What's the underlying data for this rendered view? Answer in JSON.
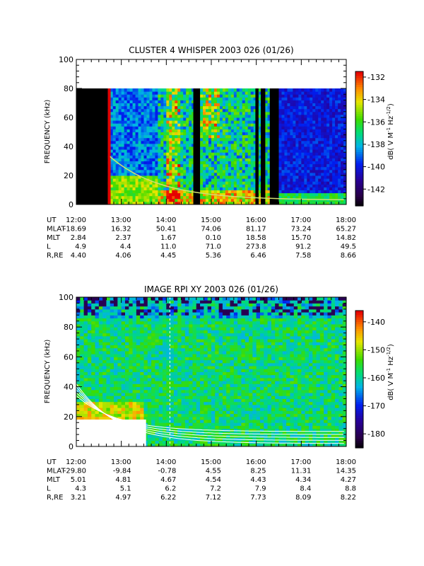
{
  "chart_data": [
    {
      "type": "heatmap",
      "title": "CLUSTER 4 WHISPER 2003 026 (01/26)",
      "ylabel": "FREQUENCY (kHz)",
      "ylim": [
        0,
        100
      ],
      "yticks": [
        "0",
        "20",
        "40",
        "60",
        "80",
        "100"
      ],
      "colorbar": {
        "label": "dB( V M",
        "label_sup1": "-1",
        "label_mid": " Hz",
        "label_sup2": "-1/2",
        "label_end": ")",
        "ticks": [
          "-132",
          "-134",
          "-136",
          "-138",
          "-140",
          "-142"
        ],
        "tick_values": [
          -132,
          -134,
          -136,
          -138,
          -140,
          -142
        ],
        "range": [
          -143.5,
          -131.5
        ]
      },
      "data_top_khz": 80,
      "gaps_hours": [
        [
          12.0,
          12.7
        ],
        [
          14.6,
          14.75
        ],
        [
          15.98,
          16.05
        ],
        [
          16.1,
          16.2
        ],
        [
          16.3,
          16.5
        ]
      ],
      "ephemeris": {
        "labels": [
          "UT",
          "MLAT",
          "MLT",
          "L",
          "R,RE"
        ],
        "times": [
          "12:00",
          "13:00",
          "14:00",
          "15:00",
          "16:00",
          "17:00",
          "18:00"
        ],
        "rows": [
          [
            "12:00",
            "13:00",
            "14:00",
            "15:00",
            "16:00",
            "17:00",
            "18:00"
          ],
          [
            "-18.69",
            "16.32",
            "50.41",
            "74.06",
            "81.17",
            "73.24",
            "65.27"
          ],
          [
            "2.84",
            "2.37",
            "1.67",
            "0.10",
            "18.58",
            "15.70",
            "14.82"
          ],
          [
            "4.9",
            "4.4",
            "11.0",
            "71.0",
            "273.8",
            "91.2",
            "49.5"
          ],
          [
            "4.40",
            "4.06",
            "4.45",
            "5.36",
            "6.46",
            "7.58",
            "8.66"
          ]
        ]
      }
    },
    {
      "type": "heatmap",
      "title": "IMAGE RPI XY 2003 026 (01/26)",
      "ylabel": "FREQUENCY (kHz)",
      "ylim": [
        0,
        100
      ],
      "yticks": [
        "0",
        "20",
        "40",
        "60",
        "80",
        "100"
      ],
      "colorbar": {
        "label": "dB( V M",
        "label_sup1": "-1",
        "label_mid": " Hz",
        "label_sup2": "-1/2",
        "label_end": ")",
        "ticks": [
          "-140",
          "-150",
          "-160",
          "-170",
          "-180"
        ],
        "tick_values": [
          -140,
          -150,
          -160,
          -170,
          -180
        ],
        "range": [
          -185,
          -136
        ]
      },
      "ephemeris": {
        "labels": [
          "UT",
          "MLAT",
          "MLT",
          "L",
          "R,RE"
        ],
        "times": [
          "12:00",
          "13:00",
          "14:00",
          "15:00",
          "16:00",
          "17:00",
          "18:00"
        ],
        "rows": [
          [
            "12:00",
            "13:00",
            "14:00",
            "15:00",
            "16:00",
            "17:00",
            "18:00"
          ],
          [
            "-29.80",
            "-9.84",
            "-0.78",
            "4.55",
            "8.25",
            "11.31",
            "14.35"
          ],
          [
            "5.01",
            "4.81",
            "4.67",
            "4.54",
            "4.43",
            "4.34",
            "4.27"
          ],
          [
            "4.3",
            "5.1",
            "6.2",
            "7.2",
            "7.9",
            "8.4",
            "8.8"
          ],
          [
            "3.21",
            "4.97",
            "6.22",
            "7.12",
            "7.73",
            "8.09",
            "8.22"
          ]
        ]
      }
    }
  ]
}
